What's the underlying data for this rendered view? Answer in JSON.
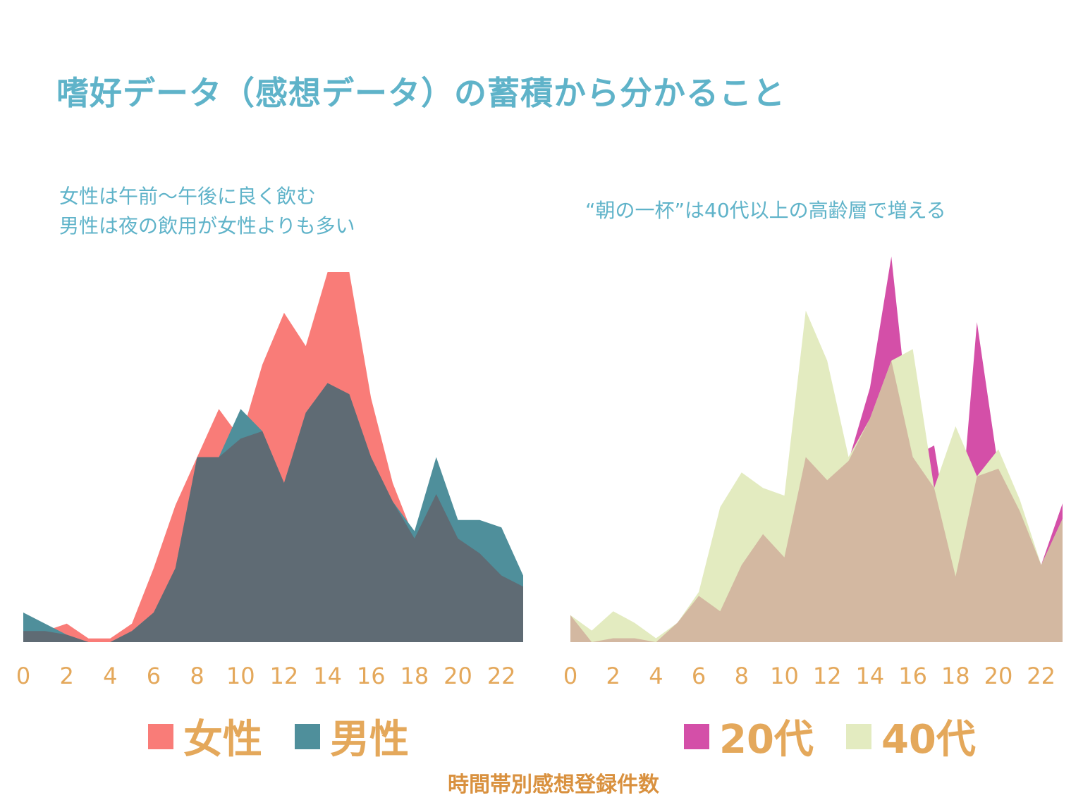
{
  "title": "嗜好データ（感想データ）の蓄積から分かること",
  "charts": {
    "left": {
      "note_line1": "女性は午前〜午後に良く飲む",
      "note_line2": "男性は夜の飲用が女性よりも多い"
    },
    "right": {
      "note": "“朝の一杯”は40代以上の高齢層で増える"
    }
  },
  "legend": {
    "left": [
      {
        "label": "女性",
        "color": "#f97c78"
      },
      {
        "label": "男性",
        "color": "#4f8f9b"
      }
    ],
    "right": [
      {
        "label": "20代",
        "color": "#d44fa8"
      },
      {
        "label": "40代",
        "color": "#e3ebc0"
      }
    ]
  },
  "caption": "時間帯別感想登録件数",
  "colors": {
    "title": "#5fb3c9",
    "tick": "#e4a85b",
    "caption": "#d9913f"
  },
  "chart_data": [
    {
      "type": "area",
      "x": [
        0,
        1,
        2,
        3,
        4,
        5,
        6,
        7,
        8,
        9,
        10,
        11,
        12,
        13,
        14,
        15,
        16,
        17,
        18,
        19,
        20,
        21,
        22,
        23
      ],
      "xticks": [
        "0",
        "2",
        "4",
        "6",
        "8",
        "10",
        "12",
        "14",
        "16",
        "18",
        "20",
        "22"
      ],
      "ylim": [
        0,
        100
      ],
      "series": [
        {
          "name": "女性",
          "color": "#f97c78",
          "values": [
            3,
            3,
            5,
            1,
            1,
            5,
            20,
            37,
            50,
            63,
            55,
            75,
            89,
            80,
            100,
            100,
            66,
            43,
            28,
            40,
            28,
            24,
            18,
            15
          ]
        },
        {
          "name": "男性",
          "color": "#4f8f9b",
          "values": [
            8,
            5,
            2,
            0,
            0,
            3,
            8,
            20,
            50,
            50,
            63,
            57,
            43,
            62,
            70,
            67,
            50,
            38,
            30,
            50,
            33,
            33,
            31,
            18
          ]
        }
      ],
      "overlap_color": "#5f6b74"
    },
    {
      "type": "area",
      "x": [
        0,
        1,
        2,
        3,
        4,
        5,
        6,
        7,
        8,
        9,
        10,
        11,
        12,
        13,
        14,
        15,
        16,
        17,
        18,
        19,
        20,
        21,
        22,
        23
      ],
      "xticks": [
        "0",
        "2",
        "4",
        "6",
        "8",
        "10",
        "12",
        "14",
        "16",
        "18",
        "20",
        "22"
      ],
      "ylim": [
        0,
        100
      ],
      "series": [
        {
          "name": "20代",
          "color": "#d44fa8",
          "values": [
            7,
            0,
            1,
            1,
            0,
            5,
            12,
            8,
            20,
            28,
            22,
            48,
            42,
            47,
            66,
            100,
            48,
            51,
            17,
            83,
            45,
            34,
            20,
            36
          ]
        },
        {
          "name": "40代",
          "color": "#e3ebc0",
          "values": [
            7,
            3,
            8,
            5,
            1,
            5,
            13,
            35,
            44,
            40,
            38,
            86,
            73,
            48,
            58,
            73,
            76,
            40,
            56,
            43,
            50,
            37,
            20,
            32
          ]
        }
      ],
      "overlap_color": "#d3b8a1"
    }
  ]
}
